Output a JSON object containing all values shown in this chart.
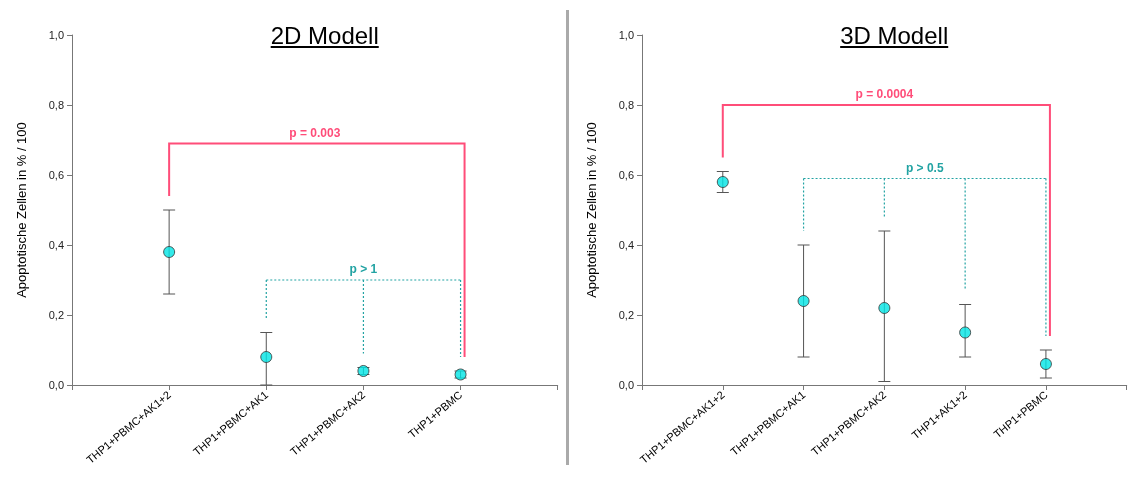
{
  "chart_data": [
    {
      "type": "scatter",
      "title": "2D Modell",
      "ylabel": "Apoptotische Zellen in % / 100",
      "categories": [
        null,
        "THP1+PBMC+AK1+2",
        "THP1+PBMC+AK1",
        "THP1+PBMC+AK2",
        "THP1+PBMC",
        null
      ],
      "values": [
        null,
        0.38,
        0.08,
        0.04,
        0.03,
        null
      ],
      "errors": [
        null,
        [
          0.26,
          0.5
        ],
        [
          0.0,
          0.15
        ],
        0.01,
        0.01,
        null
      ],
      "color": "#00e5e5",
      "marker": "circle",
      "ylim": [
        0,
        1
      ],
      "yticks": [
        {
          "value": 0,
          "label": "0,0"
        },
        {
          "value": 0.2,
          "label": "0,2"
        },
        {
          "value": 0.4,
          "label": "0,4"
        },
        {
          "value": 0.6,
          "label": "0,6"
        },
        {
          "value": 0.8,
          "label": "0,8"
        },
        {
          "value": 1,
          "label": "1,0"
        }
      ],
      "grid": false,
      "annotations": [
        "p = 0.003",
        "p > 1"
      ]
    },
    {
      "type": "scatter",
      "title": "3D Modell",
      "ylabel": "Apoptotische Zellen in % / 100",
      "categories": [
        null,
        "THP1+PBMC+AK1+2",
        "THP1+PBMC+AK1",
        "THP1+PBMC+AK2",
        "THP1+AK1+2",
        "THP1+PBMC",
        null
      ],
      "values": [
        null,
        0.58,
        0.24,
        0.22,
        0.15,
        0.06,
        null
      ],
      "errors": [
        null,
        [
          0.55,
          0.61
        ],
        [
          0.08,
          0.4
        ],
        [
          0.01,
          0.44
        ],
        [
          0.08,
          0.23
        ],
        [
          0.02,
          0.1
        ],
        null
      ],
      "color": "#00e5e5",
      "marker": "circle",
      "ylim": [
        0,
        1
      ],
      "yticks": [
        {
          "value": 0,
          "label": "0,0"
        },
        {
          "value": 0.2,
          "label": "0,2"
        },
        {
          "value": 0.4,
          "label": "0,4"
        },
        {
          "value": 0.6,
          "label": "0,6"
        },
        {
          "value": 0.8,
          "label": "0,8"
        },
        {
          "value": 1,
          "label": "1,0"
        }
      ],
      "grid": false,
      "annotations": [
        "p = 0.0004",
        "p > 0.5"
      ]
    }
  ]
}
